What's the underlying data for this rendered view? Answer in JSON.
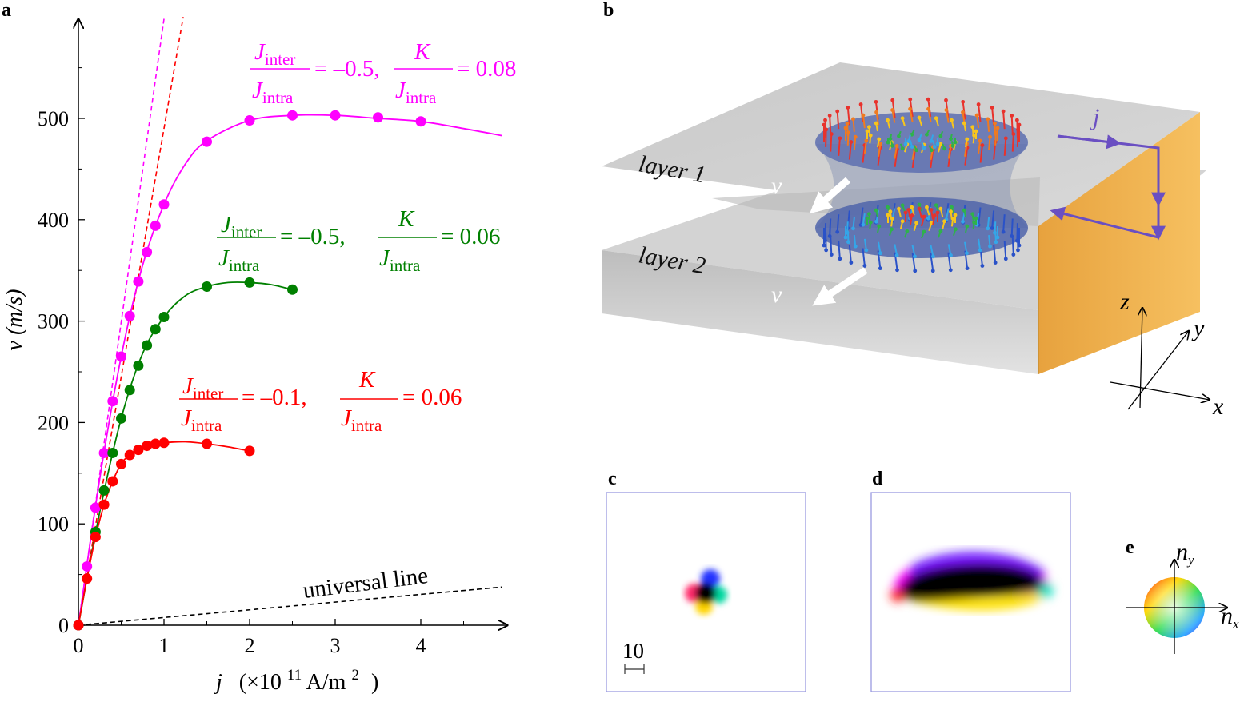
{
  "panels": {
    "a": "a",
    "b": "b",
    "c": "c",
    "d": "d",
    "e": "e"
  },
  "chart_data": {
    "type": "scatter",
    "panel": "a",
    "xlabel": "j",
    "xlabel_units": "(×10",
    "xlabel_exp": "11",
    "xlabel_units2": "A/m",
    "xlabel_sq": "2",
    "xlabel_close": ")",
    "ylabel": "v (m/s)",
    "xlim": [
      0,
      5
    ],
    "ylim": [
      0,
      580
    ],
    "x_ticks": [
      0,
      1,
      2,
      3,
      4
    ],
    "x_tick_labels": [
      "0",
      "1",
      "2",
      "3",
      "4"
    ],
    "y_ticks": [
      0,
      100,
      200,
      300,
      400,
      500
    ],
    "y_tick_labels": [
      "0",
      "100",
      "200",
      "300",
      "400",
      "500"
    ],
    "series": [
      {
        "name": "magenta",
        "color": "#ff00ff",
        "label_frac1_num": "J",
        "label_frac1_num_sub": "inter",
        "label_frac1_den": "J",
        "label_frac1_den_sub": "intra",
        "label_value1": "= –0.5,",
        "label_frac2_num": "K",
        "label_frac2_den": "J",
        "label_frac2_den_sub": "intra",
        "label_value2": "= 0.08",
        "x": [
          0,
          0.1,
          0.2,
          0.3,
          0.4,
          0.5,
          0.6,
          0.7,
          0.8,
          0.9,
          1.0,
          1.5,
          2.0,
          2.5,
          3.0,
          3.5,
          4.0
        ],
        "y": [
          0,
          58,
          116,
          170,
          221,
          265,
          305,
          339,
          368,
          394,
          415,
          477,
          498,
          503,
          503,
          501,
          497
        ],
        "fit_x": [
          0,
          0.25,
          0.5,
          0.75,
          1.0,
          1.25,
          1.5,
          2.0,
          2.5,
          3.0,
          3.5,
          4.0,
          4.5,
          4.95
        ],
        "fit_y": [
          0,
          145,
          265,
          355,
          415,
          455,
          478,
          498,
          503,
          503,
          500,
          497,
          490,
          483
        ],
        "asymptote_slope": 598
      },
      {
        "name": "green",
        "color": "#008000",
        "label_frac1_num": "J",
        "label_frac1_num_sub": "inter",
        "label_frac1_den": "J",
        "label_frac1_den_sub": "intra",
        "label_value1": "= –0.5,",
        "label_frac2_num": "K",
        "label_frac2_den": "J",
        "label_frac2_den_sub": "intra",
        "label_value2": "= 0.06",
        "x": [
          0,
          0.2,
          0.3,
          0.4,
          0.5,
          0.6,
          0.7,
          0.8,
          0.9,
          1.0,
          1.5,
          2.0,
          2.5
        ],
        "y": [
          0,
          92,
          133,
          170,
          204,
          232,
          256,
          276,
          292,
          304,
          334,
          338,
          331
        ],
        "fit_x": [
          0,
          0.25,
          0.5,
          0.75,
          1.0,
          1.25,
          1.5,
          1.75,
          2.0,
          2.25,
          2.5
        ],
        "fit_y": [
          0,
          112,
          204,
          268,
          304,
          325,
          334,
          338,
          338,
          336,
          331
        ]
      },
      {
        "name": "red",
        "color": "#ff0000",
        "label_frac1_num": "J",
        "label_frac1_num_sub": "inter",
        "label_frac1_den": "J",
        "label_frac1_den_sub": "intra",
        "label_value1": "= –0.1,",
        "label_frac2_num": "K",
        "label_frac2_den": "J",
        "label_frac2_den_sub": "intra",
        "label_value2": "= 0.06",
        "x": [
          0,
          0.1,
          0.2,
          0.3,
          0.4,
          0.5,
          0.6,
          0.7,
          0.8,
          0.9,
          1.0,
          1.5,
          2.0
        ],
        "y": [
          0,
          46,
          87,
          119,
          142,
          159,
          168,
          173,
          177,
          179,
          180,
          179,
          172
        ],
        "fit_x": [
          0,
          0.1,
          0.2,
          0.3,
          0.4,
          0.5,
          0.6,
          0.8,
          1.0,
          1.25,
          1.5,
          1.75,
          2.0
        ],
        "fit_y": [
          0,
          46,
          87,
          119,
          142,
          159,
          168,
          177,
          180,
          181,
          179,
          176,
          172
        ],
        "asymptote_slope": 490
      }
    ],
    "universal_line": {
      "label": "universal line",
      "slope": 7.6
    }
  },
  "scene": {
    "layer1": "layer 1",
    "layer2": "layer 2",
    "velocity": "v",
    "current": "j",
    "axis_x": "x",
    "axis_y": "y",
    "axis_z": "z"
  },
  "panel_c": {
    "scale_value": "10"
  },
  "panel_e": {
    "axis_nx": "n",
    "axis_nx_sub": "x",
    "axis_ny": "n",
    "axis_ny_sub": "y"
  },
  "colors": {
    "magenta": "#ff00ff",
    "green": "#008000",
    "red": "#ff0000",
    "slab_top": "#cfcfcf",
    "slab_side": "#f0b04a",
    "current_arrow": "#6a4fc2",
    "frame": "#9a9ae0"
  }
}
